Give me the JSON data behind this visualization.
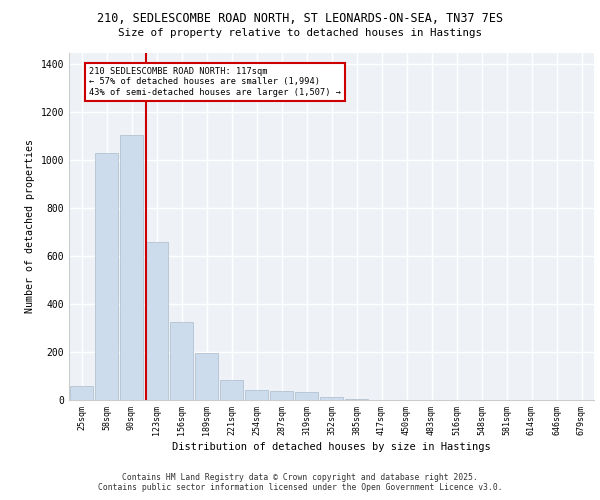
{
  "title_line1": "210, SEDLESCOMBE ROAD NORTH, ST LEONARDS-ON-SEA, TN37 7ES",
  "title_line2": "Size of property relative to detached houses in Hastings",
  "xlabel": "Distribution of detached houses by size in Hastings",
  "ylabel": "Number of detached properties",
  "categories": [
    "25sqm",
    "58sqm",
    "90sqm",
    "123sqm",
    "156sqm",
    "189sqm",
    "221sqm",
    "254sqm",
    "287sqm",
    "319sqm",
    "352sqm",
    "385sqm",
    "417sqm",
    "450sqm",
    "483sqm",
    "516sqm",
    "548sqm",
    "581sqm",
    "614sqm",
    "646sqm",
    "679sqm"
  ],
  "values": [
    60,
    1030,
    1105,
    660,
    325,
    195,
    85,
    42,
    38,
    32,
    12,
    5,
    2,
    1,
    0,
    0,
    0,
    0,
    0,
    0,
    0
  ],
  "bar_color": "#ccdcec",
  "bar_edge_color": "#aabccc",
  "vline_color": "#cc0000",
  "vline_x": 2.57,
  "annotation_title": "210 SEDLESCOMBE ROAD NORTH: 117sqm",
  "annotation_line2": "← 57% of detached houses are smaller (1,994)",
  "annotation_line3": "43% of semi-detached houses are larger (1,507) →",
  "annotation_box_color": "#cc0000",
  "ylim": [
    0,
    1450
  ],
  "yticks": [
    0,
    200,
    400,
    600,
    800,
    1000,
    1200,
    1400
  ],
  "background_color": "#eef2f7",
  "grid_color": "#ffffff",
  "footer_line1": "Contains HM Land Registry data © Crown copyright and database right 2025.",
  "footer_line2": "Contains public sector information licensed under the Open Government Licence v3.0."
}
